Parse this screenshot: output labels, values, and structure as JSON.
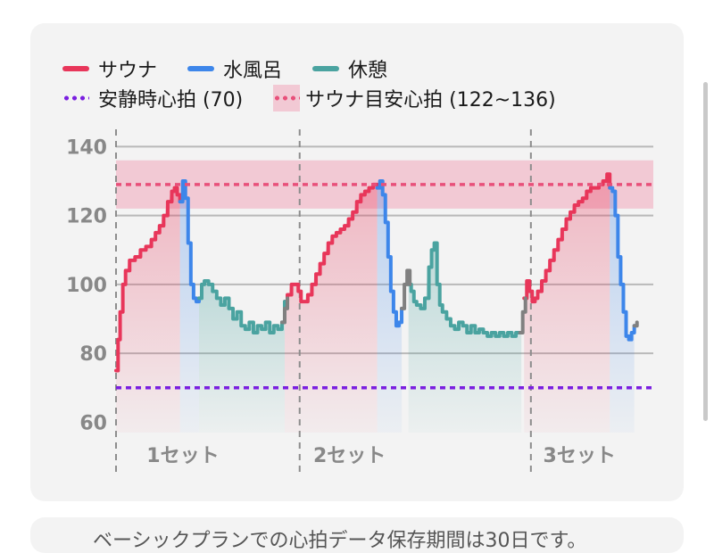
{
  "header": {
    "title_fragment": ""
  },
  "colors": {
    "sauna": "#e8365a",
    "cold_bath": "#3d86ea",
    "rest": "#4aa3a0",
    "transition": "#808080",
    "resting_hr": "#7a1fe0",
    "target_line": "#e8507a",
    "target_band": "#f2c9d4",
    "grid": "#b9b9b9",
    "axis": "#888888"
  },
  "legend": {
    "row1": [
      {
        "label": "サウナ",
        "color_key": "sauna"
      },
      {
        "label": "水風呂",
        "color_key": "cold_bath"
      },
      {
        "label": "休憩",
        "color_key": "rest"
      }
    ],
    "row2": [
      {
        "label": "安静時心拍 (70)",
        "color_key": "resting_hr"
      },
      {
        "label": "サウナ目安心拍 (122~136)",
        "color_key": "target_line"
      }
    ]
  },
  "chart_data": {
    "type": "line",
    "y_ticks": [
      60,
      80,
      100,
      120,
      140
    ],
    "ylim": [
      57,
      145
    ],
    "xlim": [
      0,
      790
    ],
    "grid": "horizontal",
    "resting_hr": 70,
    "target_band": [
      122,
      136
    ],
    "target_line": 129,
    "set_dividers_x": [
      0,
      270,
      610
    ],
    "set_labels": [
      {
        "label": "1セット",
        "x": 45
      },
      {
        "label": "2セット",
        "x": 290
      },
      {
        "label": "3セット",
        "x": 628
      }
    ],
    "series": [
      {
        "name": "サウナ",
        "color_key": "sauna",
        "segments": [
          [
            [
              0,
              75
            ],
            [
              3,
              84
            ],
            [
              6,
              92
            ],
            [
              10,
              100
            ],
            [
              14,
              104
            ],
            [
              20,
              107
            ],
            [
              28,
              108
            ],
            [
              36,
              110
            ],
            [
              44,
              111
            ],
            [
              52,
              113
            ],
            [
              58,
              115
            ],
            [
              64,
              117
            ],
            [
              70,
              120
            ],
            [
              76,
              124
            ],
            [
              82,
              127
            ],
            [
              86,
              128
            ],
            [
              90,
              126
            ],
            [
              94,
              124
            ]
          ],
          [
            [
              248,
              95
            ],
            [
              252,
              97
            ],
            [
              258,
              100
            ],
            [
              264,
              100
            ],
            [
              268,
              98
            ],
            [
              272,
              95
            ],
            [
              276,
              95
            ],
            [
              282,
              97
            ],
            [
              288,
              100
            ],
            [
              294,
              103
            ],
            [
              300,
              106
            ],
            [
              306,
              109
            ],
            [
              312,
              112
            ],
            [
              318,
              114
            ],
            [
              324,
              115
            ],
            [
              330,
              116
            ],
            [
              336,
              117
            ],
            [
              342,
              119
            ],
            [
              348,
              121
            ],
            [
              354,
              124
            ],
            [
              360,
              126
            ],
            [
              366,
              127
            ],
            [
              372,
              128
            ],
            [
              378,
              129
            ],
            [
              384,
              128
            ]
          ],
          [
            [
              600,
              96
            ],
            [
              604,
              101
            ],
            [
              608,
              98
            ],
            [
              612,
              95
            ],
            [
              616,
              96
            ],
            [
              620,
              98
            ],
            [
              626,
              101
            ],
            [
              632,
              104
            ],
            [
              638,
              107
            ],
            [
              644,
              110
            ],
            [
              650,
              113
            ],
            [
              656,
              116
            ],
            [
              662,
              119
            ],
            [
              668,
              121
            ],
            [
              674,
              123
            ],
            [
              680,
              124
            ],
            [
              686,
              125
            ],
            [
              692,
              127
            ],
            [
              698,
              128
            ],
            [
              704,
              128
            ],
            [
              710,
              129
            ],
            [
              716,
              130
            ],
            [
              722,
              132
            ],
            [
              726,
              128
            ]
          ]
        ]
      },
      {
        "name": "水風呂",
        "color_key": "cold_bath",
        "segments": [
          [
            [
              94,
              124
            ],
            [
              98,
              130
            ],
            [
              102,
              125
            ],
            [
              106,
              112
            ],
            [
              110,
              100
            ],
            [
              114,
              96
            ],
            [
              118,
              95
            ],
            [
              122,
              96
            ]
          ],
          [
            [
              384,
              128
            ],
            [
              388,
              130
            ],
            [
              392,
              126
            ],
            [
              396,
              118
            ],
            [
              400,
              108
            ],
            [
              404,
              98
            ],
            [
              408,
              92
            ],
            [
              412,
              88
            ],
            [
              416,
              89
            ],
            [
              420,
              93
            ]
          ],
          [
            [
              726,
              128
            ],
            [
              730,
              127
            ],
            [
              734,
              120
            ],
            [
              738,
              108
            ],
            [
              742,
              100
            ],
            [
              746,
              92
            ],
            [
              750,
              85
            ],
            [
              754,
              84
            ],
            [
              758,
              86
            ],
            [
              762,
              88
            ]
          ]
        ]
      },
      {
        "name": "休憩",
        "color_key": "rest",
        "segments": [
          [
            [
              122,
              96
            ],
            [
              126,
              100
            ],
            [
              130,
              101
            ],
            [
              136,
              100
            ],
            [
              142,
              98
            ],
            [
              148,
              96
            ],
            [
              154,
              94
            ],
            [
              160,
              96
            ],
            [
              166,
              93
            ],
            [
              172,
              90
            ],
            [
              178,
              92
            ],
            [
              184,
              88
            ],
            [
              190,
              87
            ],
            [
              196,
              89
            ],
            [
              202,
              86
            ],
            [
              208,
              88
            ],
            [
              214,
              87
            ],
            [
              220,
              89
            ],
            [
              226,
              86
            ],
            [
              232,
              88
            ],
            [
              238,
              87
            ],
            [
              244,
              89
            ],
            [
              248,
              95
            ]
          ],
          [
            [
              430,
              100
            ],
            [
              434,
              98
            ],
            [
              438,
              95
            ],
            [
              442,
              94
            ],
            [
              448,
              93
            ],
            [
              454,
              96
            ],
            [
              460,
              105
            ],
            [
              464,
              110
            ],
            [
              468,
              112
            ],
            [
              472,
              100
            ],
            [
              476,
              94
            ],
            [
              480,
              92
            ],
            [
              486,
              90
            ],
            [
              492,
              88
            ],
            [
              498,
              87
            ],
            [
              504,
              89
            ],
            [
              510,
              88
            ],
            [
              516,
              86
            ],
            [
              522,
              88
            ],
            [
              528,
              86
            ],
            [
              534,
              87
            ],
            [
              540,
              86
            ],
            [
              546,
              85
            ],
            [
              552,
              86
            ],
            [
              558,
              85
            ],
            [
              564,
              86
            ],
            [
              570,
              85
            ],
            [
              576,
              86
            ],
            [
              582,
              85
            ],
            [
              588,
              86
            ],
            [
              596,
              86
            ]
          ]
        ]
      },
      {
        "name": "",
        "color_key": "transition",
        "segments": [
          [
            [
              244,
              89
            ],
            [
              248,
              93
            ],
            [
              252,
              96
            ]
          ],
          [
            [
              420,
              93
            ],
            [
              424,
              100
            ],
            [
              428,
              104
            ],
            [
              432,
              100
            ]
          ],
          [
            [
              594,
              86
            ],
            [
              598,
              92
            ],
            [
              602,
              96
            ]
          ],
          [
            [
              762,
              88
            ],
            [
              766,
              89
            ]
          ]
        ]
      }
    ],
    "fill_ranges": [
      {
        "color_key": "sauna",
        "x": [
          0,
          94
        ]
      },
      {
        "color_key": "cold_bath",
        "x": [
          94,
          122
        ]
      },
      {
        "color_key": "rest",
        "x": [
          122,
          248
        ]
      },
      {
        "color_key": "sauna",
        "x": [
          248,
          384
        ]
      },
      {
        "color_key": "cold_bath",
        "x": [
          384,
          420
        ]
      },
      {
        "color_key": "rest",
        "x": [
          430,
          596
        ]
      },
      {
        "color_key": "sauna",
        "x": [
          600,
          726
        ]
      },
      {
        "color_key": "cold_bath",
        "x": [
          726,
          762
        ]
      }
    ]
  },
  "bottom_note": "ベーシックプランでの心拍データ保存期間は30日です。"
}
